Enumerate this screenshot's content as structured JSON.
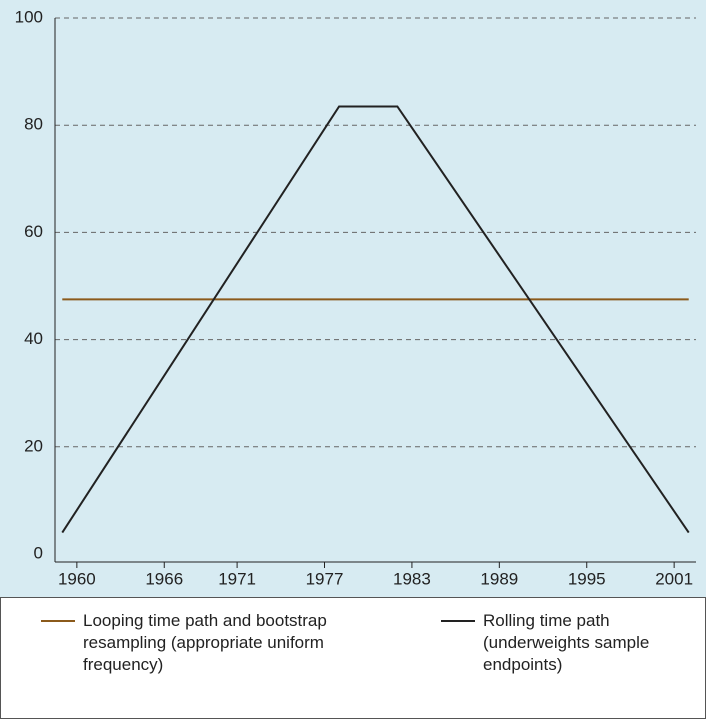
{
  "chart_data": {
    "type": "line",
    "x": [
      1959,
      1978,
      1982,
      2002
    ],
    "series": [
      {
        "name": "Looping time path and bootstrap resampling (appropriate uniform frequency)",
        "color": "#8b5a1b",
        "values": [
          47.5,
          47.5,
          47.5,
          47.5
        ]
      },
      {
        "name": "Rolling time path (underweights sample endpoints)",
        "color": "#222222",
        "values": [
          4,
          83.5,
          83.5,
          4
        ]
      }
    ],
    "xlim": [
      1958.5,
      2002.5
    ],
    "xticks": [
      1960,
      1966,
      1971,
      1977,
      1983,
      1989,
      1995,
      2001
    ],
    "ylim": [
      0,
      100
    ],
    "yticks": [
      0,
      20,
      40,
      60,
      80,
      100
    ],
    "grid": true
  }
}
